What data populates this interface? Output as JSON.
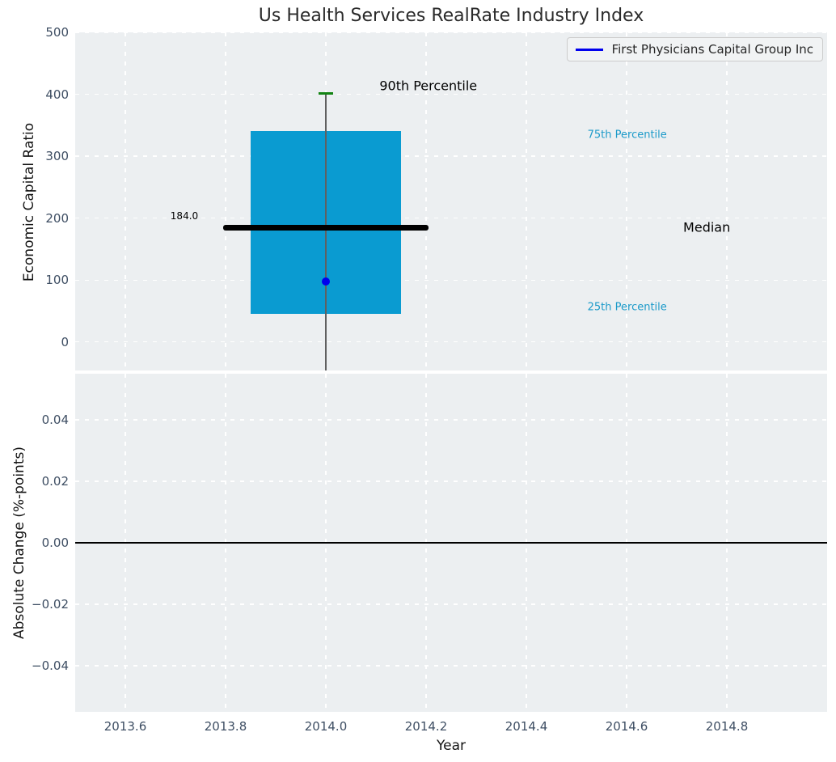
{
  "title": "Us Health Services RealRate Industry Index",
  "colors": {
    "figure_background": "#ffffff",
    "axes_background": "#eceff1",
    "grid": "#ffffff",
    "tick_label": "#3e4e63",
    "title_text": "#2b2b2b",
    "axis_label_text": "#141414",
    "box_fill": "#0a9bd1",
    "median_line": "#000000",
    "p90_cap": "#128312",
    "whisker": "#606060",
    "company_point": "#0000ee",
    "legend_line": "#0000ee",
    "percentile_label": "#1b9ac9",
    "zero_line": "#000000"
  },
  "chart_data": [
    {
      "type": "boxplot",
      "title": "Us Health Services RealRate Industry Index",
      "xlabel": "Year",
      "ylabel": "Economic Capital Ratio",
      "xlim": [
        2013.5,
        2015.0
      ],
      "ylim": [
        -46,
        500
      ],
      "grid": true,
      "xticks": [
        {
          "v": 2013.6,
          "label": "2013.6"
        },
        {
          "v": 2013.8,
          "label": "2013.8"
        },
        {
          "v": 2014.0,
          "label": "2014.0"
        },
        {
          "v": 2014.2,
          "label": "2014.2"
        },
        {
          "v": 2014.4,
          "label": "2014.4"
        },
        {
          "v": 2014.6,
          "label": "2014.6"
        },
        {
          "v": 2014.8,
          "label": "2014.8"
        }
      ],
      "yticks": [
        {
          "v": 0,
          "label": "0"
        },
        {
          "v": 100,
          "label": "100"
        },
        {
          "v": 200,
          "label": "200"
        },
        {
          "v": 300,
          "label": "300"
        },
        {
          "v": 400,
          "label": "400"
        },
        {
          "v": 500,
          "label": "500"
        }
      ],
      "show_xticklabels": false,
      "box": {
        "x": 2014.0,
        "p90": 402,
        "p75": 341,
        "median": 184.0,
        "p25": 45,
        "p10": -46,
        "box_halfwidth": 0.15,
        "median_halfwidth": 0.205,
        "cap_halfwidth": 0.0145,
        "median_label": "184.0"
      },
      "company_point": {
        "x": 2014.0,
        "y": 98
      },
      "legend": {
        "label": "First Physicians Capital Group Inc",
        "position": "upper right"
      },
      "annotations": [
        {
          "text": "90th Percentile",
          "x": 2014.107,
          "y": 414,
          "color": "#000000",
          "size": 16
        },
        {
          "text": "75th Percentile",
          "x": 2014.522,
          "y": 334,
          "color": "#1b9ac9",
          "size": 13
        },
        {
          "text": "Median",
          "x": 2014.713,
          "y": 185,
          "color": "#000000",
          "size": 16
        },
        {
          "text": "25th Percentile",
          "x": 2014.522,
          "y": 56,
          "color": "#1b9ac9",
          "size": 13
        },
        {
          "text": "184.0",
          "x": 2013.69,
          "y": 204,
          "color": "#000000",
          "size": 12
        }
      ]
    },
    {
      "type": "line",
      "xlabel": "Year",
      "ylabel": "Absolute Change (%-points)",
      "xlim": [
        2013.5,
        2015.0
      ],
      "ylim": [
        -0.055,
        0.055
      ],
      "grid": true,
      "xticks": [
        {
          "v": 2013.6,
          "label": "2013.6"
        },
        {
          "v": 2013.8,
          "label": "2013.8"
        },
        {
          "v": 2014.0,
          "label": "2014.0"
        },
        {
          "v": 2014.2,
          "label": "2014.2"
        },
        {
          "v": 2014.4,
          "label": "2014.4"
        },
        {
          "v": 2014.6,
          "label": "2014.6"
        },
        {
          "v": 2014.8,
          "label": "2014.8"
        }
      ],
      "yticks": [
        {
          "v": 0.04,
          "label": "0.04"
        },
        {
          "v": 0.02,
          "label": "0.02"
        },
        {
          "v": 0.0,
          "label": "0.00"
        },
        {
          "v": -0.02,
          "label": "−0.02"
        },
        {
          "v": -0.04,
          "label": "−0.04"
        }
      ],
      "show_xticklabels": true,
      "zero_line": 0.0,
      "series": []
    }
  ]
}
